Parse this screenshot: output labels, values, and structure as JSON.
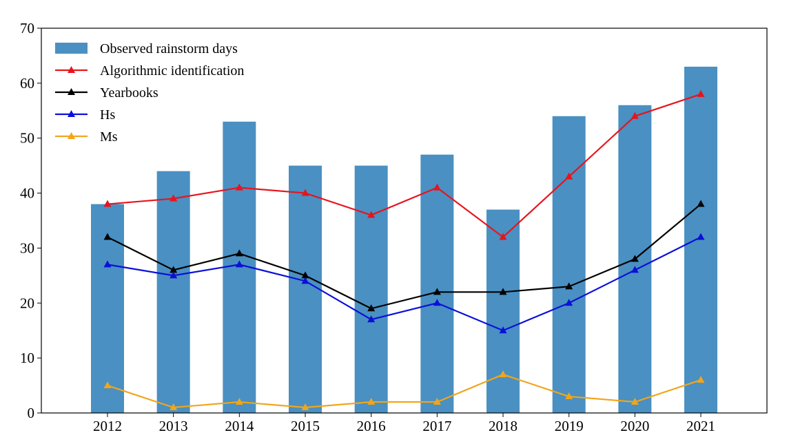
{
  "chart_data": {
    "type": "bar",
    "title": "",
    "xlabel": "",
    "ylabel": "",
    "ylim": [
      0,
      70
    ],
    "yticks": [
      0,
      10,
      20,
      30,
      40,
      50,
      60,
      70
    ],
    "categories": [
      "2012",
      "2013",
      "2014",
      "2015",
      "2016",
      "2017",
      "2018",
      "2019",
      "2020",
      "2021"
    ],
    "bars": {
      "name": "Observed rainstorm days",
      "color": "#4a90c2",
      "values": [
        38,
        44,
        53,
        45,
        45,
        47,
        37,
        54,
        56,
        63
      ]
    },
    "series": [
      {
        "name": "Algorithmic identification",
        "color": "#e8141c",
        "values": [
          38,
          39,
          41,
          40,
          36,
          41,
          32,
          43,
          54,
          58
        ]
      },
      {
        "name": "Yearbooks",
        "color": "#000000",
        "values": [
          32,
          26,
          29,
          25,
          19,
          22,
          22,
          23,
          28,
          38
        ]
      },
      {
        "name": "Hs",
        "color": "#0a10d8",
        "values": [
          27,
          25,
          27,
          24,
          17,
          20,
          15,
          20,
          26,
          32
        ]
      },
      {
        "name": "Ms",
        "color": "#f2a51a",
        "values": [
          5,
          1,
          2,
          1,
          2,
          2,
          7,
          3,
          2,
          6
        ]
      }
    ],
    "legend": "top-left",
    "grid": false
  }
}
